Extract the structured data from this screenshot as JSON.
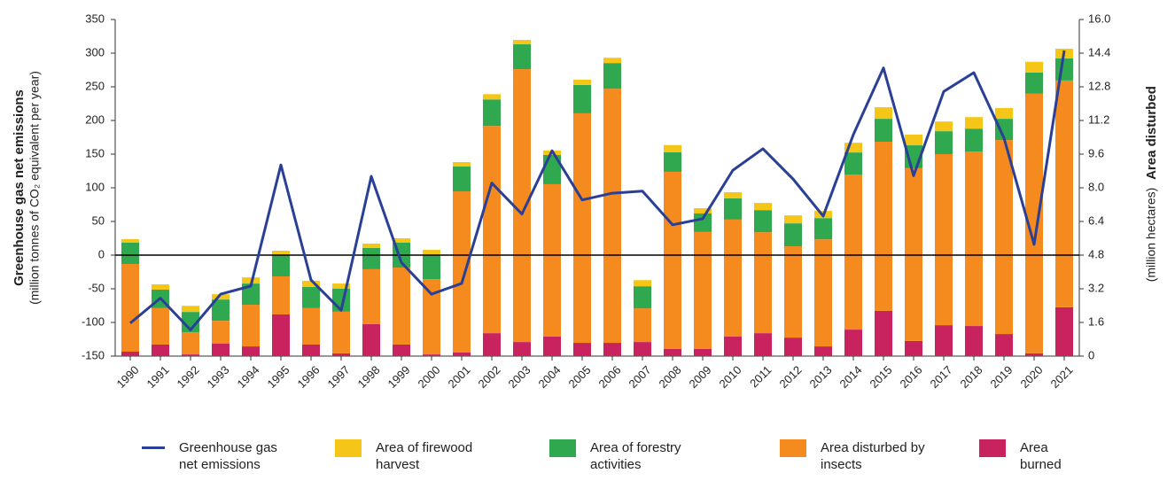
{
  "chart_data": {
    "type": "bar",
    "ylabel": "Greenhouse gas net emissions",
    "ylabel_sub": "(million tonnes of CO₂ equivalent per year)",
    "y2label": "Area disturbed",
    "y2label_sub": "(million hectares)",
    "categories": [
      "1990",
      "1991",
      "1992",
      "1993",
      "1994",
      "1995",
      "1996",
      "1997",
      "1998",
      "1999",
      "2000",
      "2001",
      "2002",
      "2003",
      "2004",
      "2005",
      "2006",
      "2007",
      "2008",
      "2009",
      "2010",
      "2011",
      "2012",
      "2013",
      "2014",
      "2015",
      "2016",
      "2017",
      "2018",
      "2019",
      "2020",
      "2021"
    ],
    "ylim": [
      -150,
      350
    ],
    "yticks": [
      -150,
      -100,
      -50,
      0,
      50,
      100,
      150,
      200,
      250,
      300,
      350
    ],
    "y2lim": [
      0,
      16
    ],
    "y2ticks": [
      0,
      1.6,
      3.2,
      4.8,
      6.4,
      {
        "value": 8,
        "label": "8.0"
      },
      9.6,
      11.2,
      12.8,
      14.4,
      {
        "value": 16,
        "label": "16.0"
      }
    ],
    "stacked": true,
    "series": [
      {
        "name": "Greenhouse gas net emissions",
        "type": "line",
        "color": "#2a3f96",
        "axis": "y",
        "values": [
          -101,
          -64,
          -111,
          -58,
          -46,
          134,
          -37,
          -82,
          117,
          -11,
          -58,
          -42,
          107,
          61,
          155,
          82,
          92,
          95,
          45,
          54,
          126,
          158,
          113,
          58,
          179,
          278,
          118,
          243,
          271,
          174,
          16,
          304
        ]
      },
      {
        "name": "Area of firewood harvest",
        "type": "bar",
        "color": "#f5c518",
        "axis": "y2",
        "values": [
          0.17,
          0.25,
          0.29,
          0.25,
          0.29,
          0.21,
          0.29,
          0.25,
          0.21,
          0.21,
          0.25,
          0.21,
          0.25,
          0.21,
          0.21,
          0.25,
          0.25,
          0.29,
          0.34,
          0.25,
          0.29,
          0.34,
          0.38,
          0.34,
          0.46,
          0.55,
          0.51,
          0.46,
          0.55,
          0.51,
          0.51,
          0.46
        ]
      },
      {
        "name": "Area of forestry activities",
        "type": "bar",
        "color": "#2fa84f",
        "axis": "y2",
        "values": [
          1.01,
          0.88,
          0.97,
          1.01,
          1.01,
          1.01,
          1.01,
          1.09,
          1.01,
          1.18,
          1.14,
          1.18,
          1.26,
          1.18,
          1.39,
          1.35,
          1.22,
          1.05,
          0.93,
          0.88,
          1.01,
          1.05,
          1.09,
          1.01,
          1.05,
          1.09,
          1.09,
          1.09,
          1.09,
          1.01,
          1.01,
          1.05
        ]
      },
      {
        "name": "Area disturbed by insects",
        "type": "bar",
        "color": "#f58a1f",
        "axis": "y2",
        "values": [
          4.17,
          1.73,
          1.05,
          1.09,
          1.98,
          1.81,
          1.73,
          1.98,
          2.61,
          3.66,
          3.58,
          7.66,
          9.85,
          12.97,
          7.24,
          10.91,
          12.08,
          1.6,
          8.42,
          5.56,
          5.56,
          4.8,
          4.34,
          5.09,
          7.37,
          8.04,
          8.21,
          8.13,
          8.29,
          9.22,
          12.34,
          10.78
        ]
      },
      {
        "name": "Area burned",
        "type": "bar",
        "color": "#c8235f",
        "axis": "y2",
        "values": [
          0.21,
          0.55,
          0.08,
          0.59,
          0.46,
          1.98,
          0.55,
          0.13,
          1.52,
          0.55,
          0.08,
          0.17,
          1.09,
          0.67,
          0.93,
          0.63,
          0.63,
          0.67,
          0.34,
          0.34,
          0.93,
          1.09,
          0.88,
          0.46,
          1.26,
          2.15,
          0.72,
          1.47,
          1.43,
          1.05,
          0.13,
          2.32
        ]
      }
    ]
  }
}
